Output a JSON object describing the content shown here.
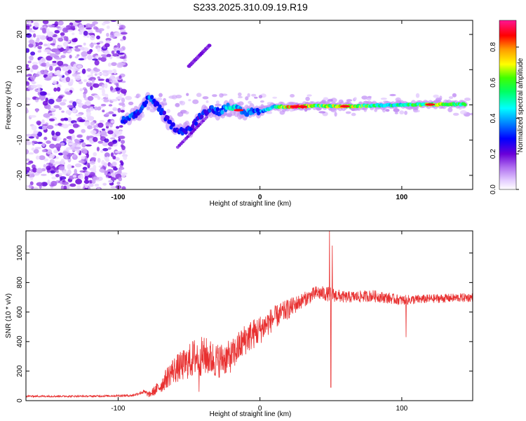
{
  "chart_data": [
    {
      "type": "heatmap",
      "title": "S233.2025.310.09.19.R19",
      "xlabel": "Height of straight line (km)",
      "ylabel": "Frequency (Hz)",
      "xlim": [
        -165,
        150
      ],
      "ylim": [
        -24,
        24
      ],
      "xticks": [
        -100,
        0,
        100
      ],
      "yticks": [
        20,
        10,
        0,
        -10,
        -20
      ],
      "colorbar": {
        "label": "Normalized spectral amplitude",
        "range": [
          0,
          0.95
        ],
        "ticks": [
          "0.0",
          "0.2",
          "0.4",
          "0.6",
          "0.8"
        ],
        "colors": [
          "#ffffff",
          "#d9b3ff",
          "#8a2be2",
          "#0000ff",
          "#00e5ff",
          "#00ff00",
          "#ffff00",
          "#ff9900",
          "#ff0000",
          "#ff1493"
        ]
      },
      "ridge": {
        "height_km": [
          -97,
          -92,
          -85,
          -78,
          -70,
          -62,
          -55,
          -48,
          -42,
          -35,
          -28,
          -22,
          -15,
          -10,
          -5,
          0,
          10,
          25,
          40,
          60,
          80,
          100,
          120,
          145
        ],
        "frequency_hz": [
          -4.5,
          -4,
          -2,
          2.5,
          -1.5,
          -6,
          -7.5,
          -6.5,
          -3,
          -1,
          -2,
          0,
          -1.5,
          -2.5,
          -1.5,
          -2,
          -0.5,
          -0.5,
          -0.3,
          -0.4,
          -0.2,
          0,
          0.1,
          0.2
        ],
        "amplitude": [
          0.3,
          0.35,
          0.3,
          0.35,
          0.3,
          0.28,
          0.3,
          0.28,
          0.28,
          0.3,
          0.35,
          0.45,
          0.45,
          0.4,
          0.35,
          0.38,
          0.5,
          0.85,
          0.6,
          0.7,
          0.55,
          0.5,
          0.65,
          0.55
        ]
      },
      "noise_region_x": [
        -165,
        -95
      ]
    },
    {
      "type": "line",
      "xlabel": "Height of straight line (km)",
      "ylabel": "SNR (10 * v/v)",
      "xlim": [
        -165,
        150
      ],
      "ylim": [
        0,
        1150
      ],
      "xticks": [
        -100,
        0,
        100
      ],
      "yticks": [
        0,
        200,
        400,
        600,
        800,
        1000
      ],
      "series": [
        {
          "name": "SNR",
          "color": "#e83030",
          "envelope_x": [
            -165,
            -120,
            -90,
            -82,
            -78,
            -70,
            -62,
            -52,
            -45,
            -38,
            -30,
            -20,
            -10,
            0,
            10,
            20,
            30,
            40,
            50,
            60,
            80,
            100,
            120,
            150
          ],
          "envelope_y": [
            30,
            30,
            35,
            60,
            40,
            100,
            200,
            250,
            300,
            300,
            270,
            300,
            420,
            480,
            560,
            620,
            680,
            730,
            720,
            700,
            710,
            680,
            690,
            700
          ],
          "noise_amplitude": [
            6,
            6,
            8,
            15,
            20,
            50,
            90,
            110,
            140,
            130,
            120,
            110,
            110,
            100,
            80,
            70,
            50,
            50,
            50,
            40,
            40,
            35,
            30,
            30
          ],
          "spikes": [
            {
              "x": 49,
              "y": 1150
            },
            {
              "x": 50,
              "y": 90
            },
            {
              "x": 51,
              "y": 1050
            },
            {
              "x": 103,
              "y": 430
            },
            {
              "x": -43,
              "y": 60
            }
          ]
        }
      ]
    }
  ]
}
